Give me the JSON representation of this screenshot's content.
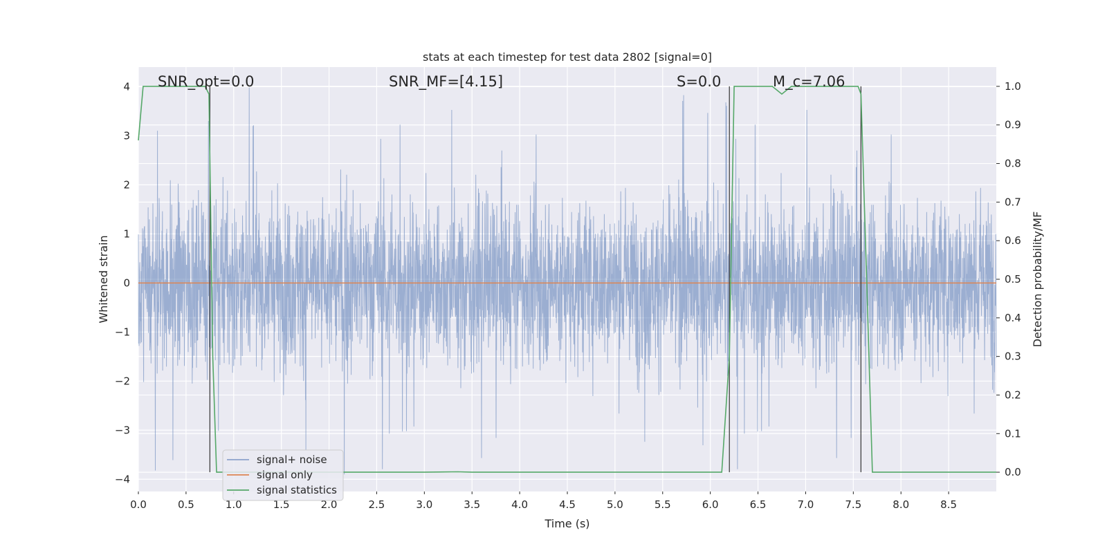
{
  "chart_data": {
    "type": "line",
    "title": "stats at each timestep for test data 2802 [signal=0]",
    "xlabel": "Time (s)",
    "ylabel_left": "Whitened strain",
    "ylabel_right": "Detection probability/MF",
    "xlim": [
      0.0,
      9.0
    ],
    "ylim_left": [
      -4.25,
      4.4
    ],
    "ylim_right": [
      -0.05,
      1.05
    ],
    "x_ticks": [
      "0.0",
      "0.5",
      "1.0",
      "1.5",
      "2.0",
      "2.5",
      "3.0",
      "3.5",
      "4.0",
      "4.5",
      "5.0",
      "5.5",
      "6.0",
      "6.5",
      "7.0",
      "7.5",
      "8.0",
      "8.5"
    ],
    "y_ticks_left": [
      "4",
      "3",
      "2",
      "1",
      "0",
      "−1",
      "−2",
      "−3",
      "−4"
    ],
    "y_ticks_right": [
      "1.0",
      "0.9",
      "0.8",
      "0.7",
      "0.6",
      "0.5",
      "0.4",
      "0.3",
      "0.2",
      "0.1",
      "0.0"
    ],
    "grid": true,
    "legend_placement": "lower-left",
    "annotations": [
      {
        "key": "snr_opt",
        "text": "SNR_opt=0.0"
      },
      {
        "key": "snr_mf",
        "text": "SNR_MF=[4.15]"
      },
      {
        "key": "s",
        "text": "S=0.0"
      },
      {
        "key": "mc",
        "text": "M_c=7.06"
      }
    ],
    "vertical_lines_x": [
      0.75,
      6.2,
      7.58
    ],
    "series": [
      {
        "name": "signal+ noise",
        "axis": "left",
        "color": "#4c72b0",
        "note": "dense noise with envelope approx 1.7 to 2.5 typical peaks, extremes about 4.0 and -3.9",
        "envelope_hi": 4.0,
        "envelope_lo": -3.9
      },
      {
        "name": "signal only",
        "axis": "left",
        "color": "#dd8452",
        "x": [
          0.0,
          9.0
        ],
        "values": [
          0.0,
          0.0
        ]
      },
      {
        "name": "signal statistics",
        "axis": "right",
        "color": "#55a868",
        "x": [
          0.0,
          0.05,
          0.1,
          0.3,
          0.6,
          0.7,
          0.74,
          0.78,
          0.82,
          1.0,
          2.0,
          3.0,
          3.35,
          3.5,
          4.0,
          5.0,
          6.0,
          6.12,
          6.2,
          6.25,
          6.5,
          6.65,
          6.75,
          6.85,
          7.0,
          7.5,
          7.55,
          7.58,
          7.64,
          7.7,
          7.75,
          8.0,
          9.0
        ],
        "values": [
          0.86,
          1.0,
          1.0,
          1.0,
          1.0,
          1.0,
          0.98,
          0.3,
          0.0,
          0.0,
          0.0,
          0.0,
          0.001,
          0.0,
          0.0,
          0.0,
          0.0,
          0.0,
          0.3,
          1.0,
          1.0,
          1.0,
          0.98,
          1.0,
          1.0,
          1.0,
          1.0,
          0.98,
          0.5,
          0.0,
          0.0,
          0.0,
          0.0
        ]
      }
    ]
  }
}
